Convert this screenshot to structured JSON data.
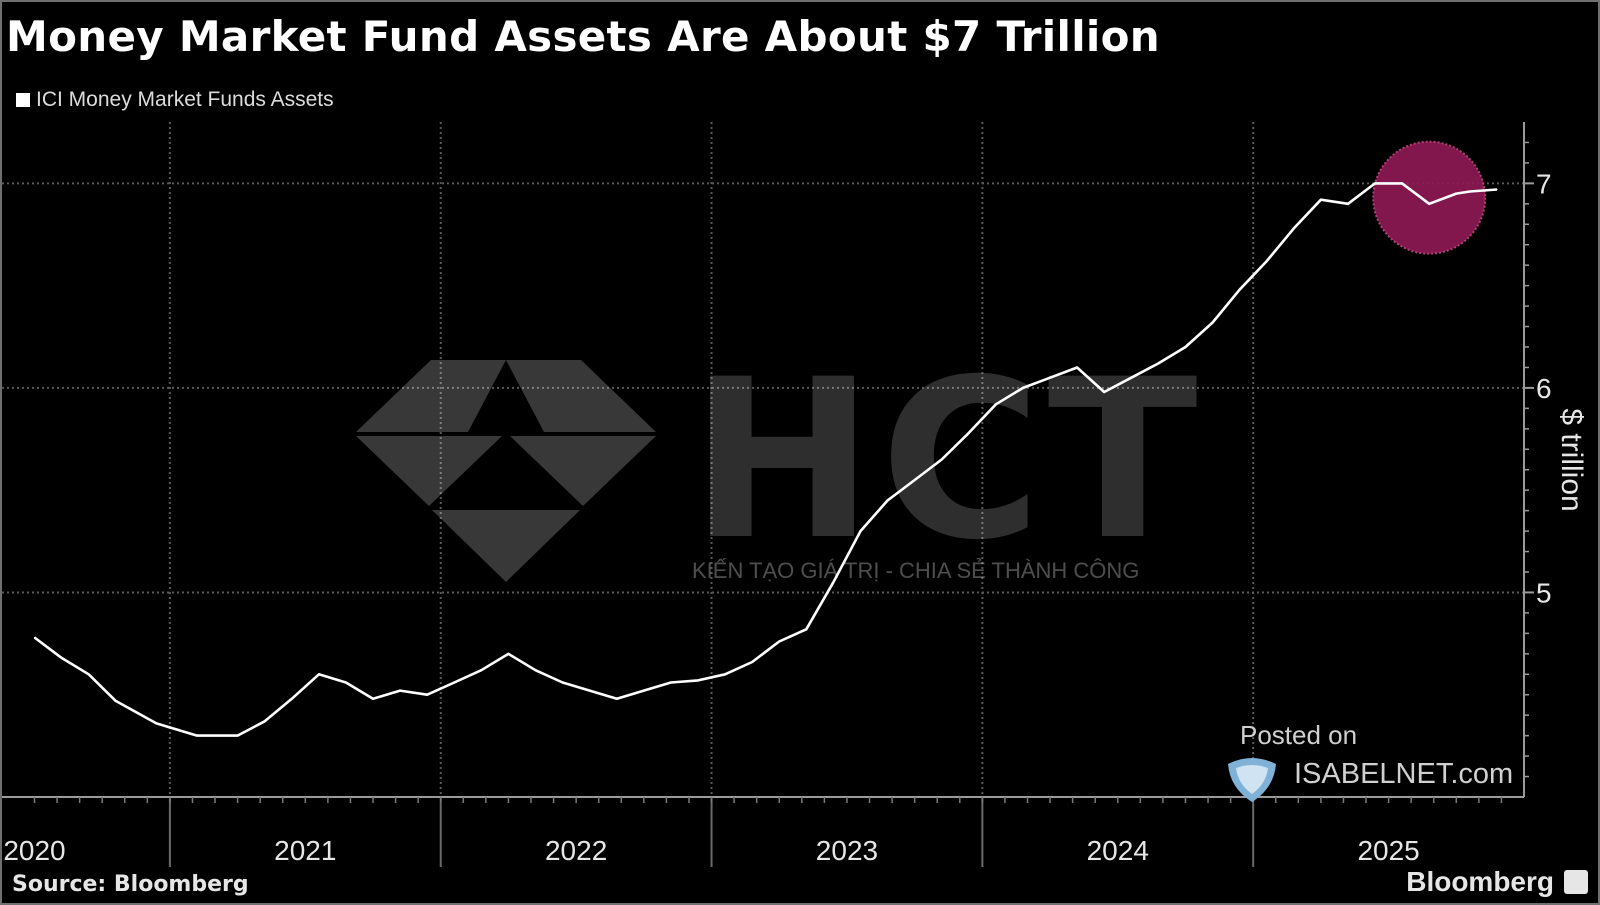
{
  "header": {
    "title": "Money Market Fund Assets Are About $7 Trillion",
    "legend_label": "ICI Money Market Funds Assets"
  },
  "footer": {
    "source": "Source: Bloomberg",
    "brand": "Bloomberg"
  },
  "watermarks": {
    "posted_on": "Posted on",
    "site": "ISABELNET.com",
    "logo_letters": "HCT",
    "logo_tagline": "KIẾN TẠO GIÁ TRỊ - CHIA SẺ THÀNH CÔNG"
  },
  "colors": {
    "background": "#000000",
    "line": "#ffffff",
    "grid": "#5a5a5a",
    "highlight": "#8e1a55"
  },
  "chart_data": {
    "type": "line",
    "title": "Money Market Fund Assets Are About $7 Trillion",
    "ylabel": "$ trillion",
    "xlabel": "",
    "ylim": [
      4.0,
      7.3
    ],
    "yticks": [
      5,
      6,
      7
    ],
    "x_tick_labels": [
      "2020",
      "2021",
      "2022",
      "2023",
      "2024",
      "2025"
    ],
    "grid": true,
    "legend_position": "top-left",
    "series": [
      {
        "name": "ICI Money Market Funds Assets",
        "x": [
          2020.0,
          2020.1,
          2020.2,
          2020.3,
          2020.45,
          2020.6,
          2020.75,
          2020.85,
          2020.95,
          2021.05,
          2021.15,
          2021.25,
          2021.35,
          2021.45,
          2021.55,
          2021.65,
          2021.75,
          2021.85,
          2021.95,
          2022.05,
          2022.15,
          2022.25,
          2022.35,
          2022.45,
          2022.55,
          2022.65,
          2022.75,
          2022.85,
          2022.95,
          2023.05,
          2023.15,
          2023.25,
          2023.35,
          2023.45,
          2023.55,
          2023.65,
          2023.75,
          2023.85,
          2023.95,
          2024.05,
          2024.15,
          2024.25,
          2024.35,
          2024.45,
          2024.55,
          2024.65,
          2024.75,
          2024.85,
          2024.95,
          2025.05,
          2025.15,
          2025.25,
          2025.3,
          2025.4
        ],
        "values": [
          4.78,
          4.68,
          4.6,
          4.47,
          4.36,
          4.3,
          4.3,
          4.37,
          4.48,
          4.6,
          4.56,
          4.48,
          4.52,
          4.5,
          4.56,
          4.62,
          4.7,
          4.62,
          4.56,
          4.52,
          4.48,
          4.52,
          4.56,
          4.57,
          4.6,
          4.66,
          4.76,
          4.82,
          5.05,
          5.3,
          5.45,
          5.55,
          5.65,
          5.78,
          5.92,
          6.0,
          6.05,
          6.1,
          5.98,
          6.05,
          6.12,
          6.2,
          6.32,
          6.48,
          6.62,
          6.78,
          6.92,
          6.9,
          7.0,
          7.0,
          6.9,
          6.95,
          6.96,
          6.97
        ]
      }
    ]
  }
}
